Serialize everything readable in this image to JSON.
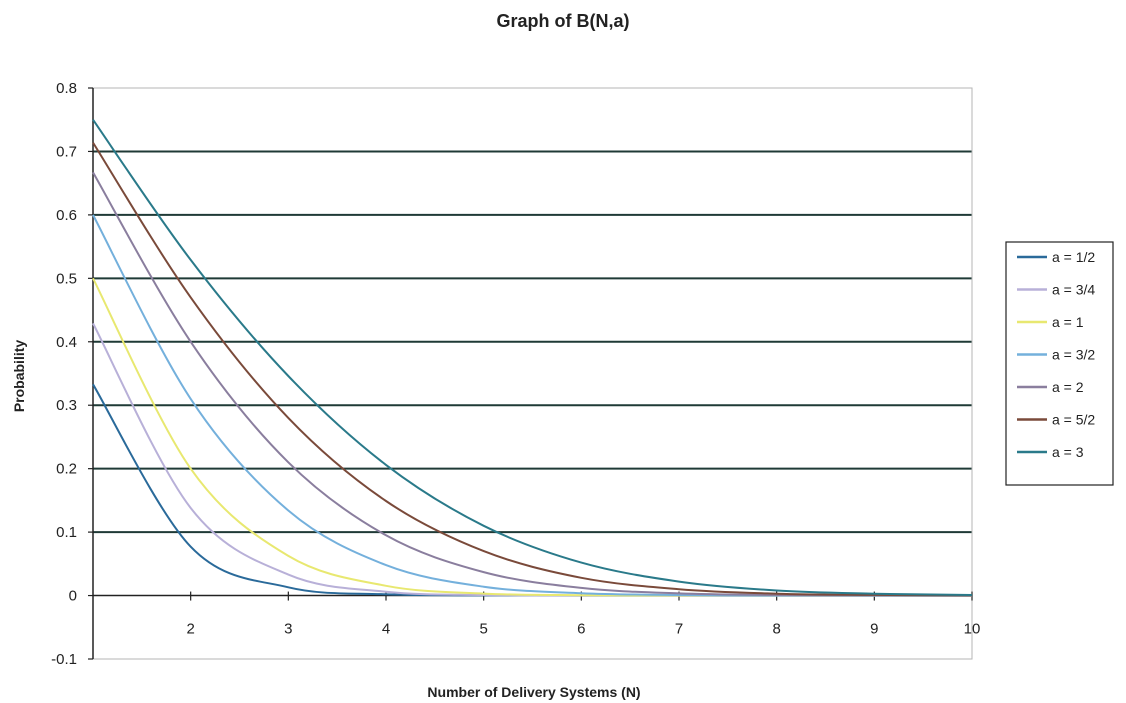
{
  "chart_data": {
    "type": "line",
    "title": "Graph of B(N,a)",
    "xlabel": "Number of Delivery Systems (N)",
    "ylabel": "Probability",
    "xlim": [
      1,
      10
    ],
    "ylim": [
      -0.1,
      0.8
    ],
    "x_ticks": [
      "2",
      "3",
      "4",
      "5",
      "6",
      "7",
      "8",
      "9",
      "10"
    ],
    "y_ticks": [
      "0.8",
      "0.7",
      "0.6",
      "0.5",
      "0.4",
      "0.3",
      "0.2",
      "0.1",
      "0",
      "-0.1"
    ],
    "grid": true,
    "legend_position": "right",
    "x": [
      1,
      2,
      3,
      4,
      5,
      6,
      7,
      8,
      9,
      10
    ],
    "series": [
      {
        "name": "a = 1/2",
        "color": "#2a6a9a",
        "values": [
          0.333,
          0.077,
          0.013,
          0.002,
          0.0002,
          0.0,
          0.0,
          0.0,
          0.0,
          0.0
        ]
      },
      {
        "name": "a = 3/4",
        "color": "#b8b0d8",
        "values": [
          0.429,
          0.138,
          0.033,
          0.006,
          0.0009,
          0.0001,
          0.0,
          0.0,
          0.0,
          0.0
        ]
      },
      {
        "name": "a = 1",
        "color": "#e8e870",
        "values": [
          0.5,
          0.2,
          0.0625,
          0.0154,
          0.0031,
          0.0005,
          0.0001,
          0.0,
          0.0,
          0.0
        ]
      },
      {
        "name": "a = 3/2",
        "color": "#74b0dc",
        "values": [
          0.6,
          0.31,
          0.134,
          0.048,
          0.014,
          0.0037,
          0.0008,
          0.0001,
          0.0,
          0.0
        ]
      },
      {
        "name": "a = 2",
        "color": "#8a7e9e",
        "values": [
          0.667,
          0.4,
          0.21,
          0.095,
          0.037,
          0.012,
          0.0034,
          0.0009,
          0.0002,
          0.0
        ]
      },
      {
        "name": "a = 5/2",
        "color": "#7a4a3a",
        "values": [
          0.714,
          0.47,
          0.28,
          0.149,
          0.07,
          0.028,
          0.01,
          0.003,
          0.001,
          0.0002
        ]
      },
      {
        "name": "a = 3",
        "color": "#2a7a8a",
        "values": [
          0.75,
          0.529,
          0.346,
          0.206,
          0.11,
          0.052,
          0.022,
          0.008,
          0.003,
          0.0008
        ]
      }
    ]
  }
}
